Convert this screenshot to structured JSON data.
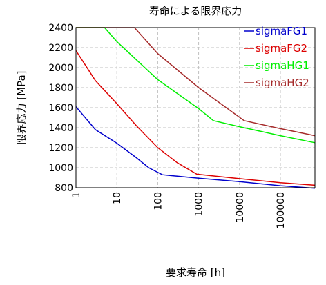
{
  "chart_data": {
    "type": "line",
    "title": "寿命による限界応力",
    "xlabel": "要求寿命 [h]",
    "ylabel": "限界応力 [MPa]",
    "xscale": "log",
    "xlim": [
      1,
      700000
    ],
    "ylim": [
      800,
      2400
    ],
    "xticks": [
      "1",
      "10",
      "100",
      "1000",
      "10000",
      "100000"
    ],
    "yticks": [
      "800",
      "1000",
      "1200",
      "1400",
      "1600",
      "1800",
      "2000",
      "2200",
      "2400"
    ],
    "grid": true,
    "legend_position": "top-right",
    "series": [
      {
        "name": "sigmaFG1",
        "color": "#0000cc",
        "x": [
          1,
          3,
          10,
          30,
          60,
          130,
          1000,
          10000,
          100000,
          700000
        ],
        "y": [
          1610,
          1380,
          1245,
          1100,
          1000,
          930,
          895,
          860,
          820,
          795
        ]
      },
      {
        "name": "sigmaFG2",
        "color": "#dd0000",
        "x": [
          1,
          3,
          10,
          30,
          100,
          300,
          900,
          10000,
          100000,
          700000
        ],
        "y": [
          2170,
          1870,
          1640,
          1420,
          1200,
          1050,
          935,
          890,
          850,
          825
        ]
      },
      {
        "name": "sigmaHG1",
        "color": "#00ee00",
        "x": [
          1,
          5,
          10,
          100,
          1000,
          2300,
          10000,
          100000,
          700000
        ],
        "y": [
          2400,
          2400,
          2260,
          1880,
          1590,
          1470,
          1410,
          1320,
          1250
        ]
      },
      {
        "name": "sigmaHG2",
        "color": "#a52a2a",
        "x": [
          1,
          27,
          100,
          1000,
          13000,
          100000,
          700000
        ],
        "y": [
          2400,
          2400,
          2140,
          1800,
          1470,
          1390,
          1320
        ]
      }
    ]
  }
}
